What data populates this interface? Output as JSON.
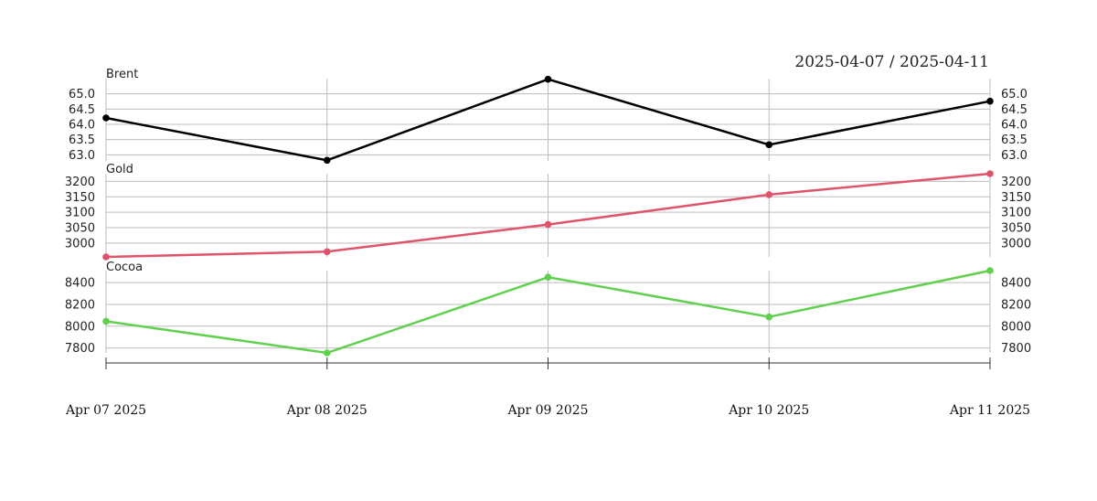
{
  "date_range": "2025-04-07 / 2025-04-11",
  "chart_data": {
    "type": "line",
    "x": [
      "2025-04-07",
      "2025-04-08",
      "2025-04-09",
      "2025-04-10",
      "2025-04-11"
    ],
    "x_tick_labels": [
      "Apr 07 2025",
      "Apr 08 2025",
      "Apr 09 2025",
      "Apr 10 2025",
      "Apr 11 2025"
    ],
    "grid": true,
    "panels": [
      {
        "title": "Brent",
        "color": "#000000",
        "values": [
          64.21,
          62.82,
          65.48,
          63.33,
          64.76
        ],
        "ylim": [
          62.8,
          65.5
        ],
        "yticks": [
          63.0,
          63.5,
          64.0,
          64.5,
          65.0
        ],
        "ytick_labels": [
          "63.0",
          "63.5",
          "64.0",
          "64.5",
          "65.0"
        ]
      },
      {
        "title": "Gold",
        "color": "#df536b",
        "values": [
          2955,
          2972,
          3060,
          3157,
          3225
        ],
        "ylim": [
          2955,
          3225
        ],
        "yticks": [
          3000,
          3050,
          3100,
          3150,
          3200
        ],
        "ytick_labels": [
          "3000",
          "3050",
          "3100",
          "3150",
          "3200"
        ]
      },
      {
        "title": "Cocoa",
        "color": "#61d04f",
        "values": [
          8045,
          7755,
          8450,
          8085,
          8510
        ],
        "ylim": [
          7755,
          8510
        ],
        "yticks": [
          7800,
          8000,
          8200,
          8400
        ],
        "ytick_labels": [
          "7800",
          "8000",
          "8200",
          "8400"
        ]
      }
    ]
  }
}
